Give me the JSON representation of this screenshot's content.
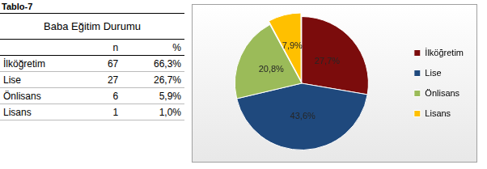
{
  "title": "Tablo-7",
  "table": {
    "title": "Baba Eğitim Durumu",
    "header": [
      "n",
      "%"
    ],
    "rows": [
      [
        "İlköğretim",
        "67",
        "66,3%"
      ],
      [
        "Lise",
        "27",
        "26,7%"
      ],
      [
        "Önlisans",
        "6",
        "5,9%"
      ],
      [
        "Lisans",
        "1",
        "1,0%"
      ]
    ]
  },
  "chart_data": {
    "type": "pie",
    "categories": [
      "İlköğretim",
      "Lise",
      "Önlisans",
      "Lisans"
    ],
    "values": [
      27.7,
      43.6,
      20.8,
      7.9
    ],
    "value_labels": [
      "27,7%",
      "43,6%",
      "20,8%",
      "7,9%"
    ],
    "colors": [
      "#7b0c0c",
      "#1f497d",
      "#9bbb59",
      "#ffc000"
    ],
    "data_labels": true,
    "legend": "right"
  }
}
